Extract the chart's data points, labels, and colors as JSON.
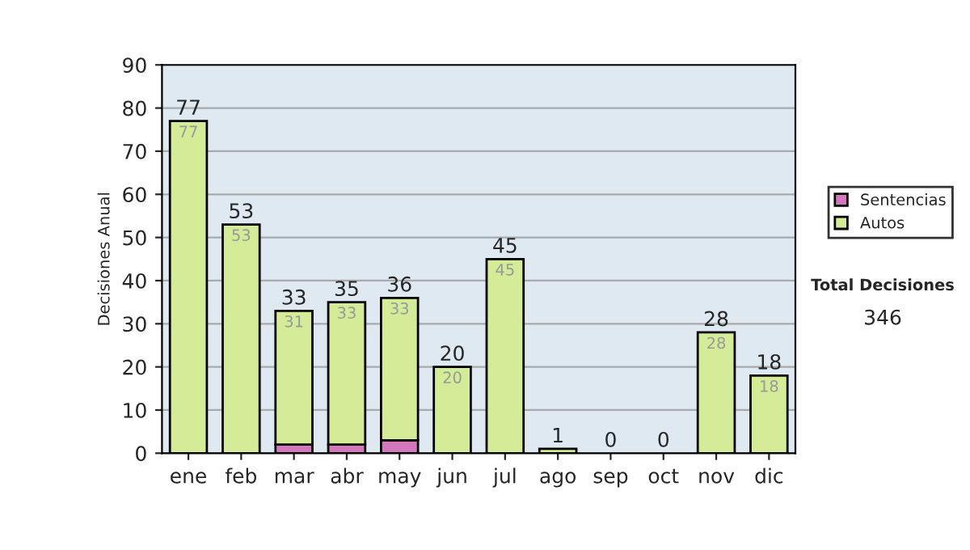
{
  "chart_data": {
    "type": "bar",
    "stacked": true,
    "ylabel": "Decisiones Anual",
    "categories": [
      "ene",
      "feb",
      "mar",
      "abr",
      "may",
      "jun",
      "jul",
      "ago",
      "sep",
      "oct",
      "nov",
      "dic"
    ],
    "series": [
      {
        "name": "Sentencias",
        "color": "#d478be",
        "values": [
          0,
          0,
          2,
          2,
          3,
          0,
          0,
          0,
          0,
          0,
          0,
          0
        ]
      },
      {
        "name": "Autos",
        "color": "#d4eb98",
        "values": [
          77,
          53,
          31,
          33,
          33,
          20,
          45,
          1,
          0,
          0,
          28,
          18
        ],
        "value_labels": [
          "77",
          "53",
          "31",
          "33",
          "33",
          "20",
          "45",
          null,
          null,
          null,
          "28",
          "18"
        ]
      }
    ],
    "totals": [
      "77",
      "53",
      "33",
      "35",
      "36",
      "20",
      "45",
      "1",
      "0",
      "0",
      "28",
      "18"
    ],
    "ylim": [
      0,
      90
    ],
    "yticks": [
      0,
      10,
      20,
      30,
      40,
      50,
      60,
      70,
      80,
      90
    ],
    "grid": "y",
    "legend": "right",
    "annotations": [
      "Total Decisiones",
      "346"
    ]
  }
}
